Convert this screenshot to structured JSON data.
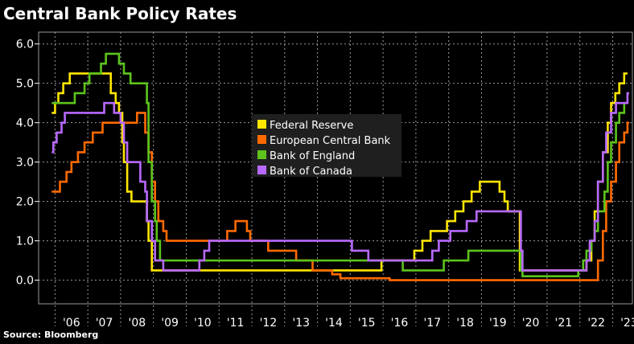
{
  "title": "Central Bank Policy Rates",
  "source": "Source:  Bloomberg",
  "colors": {
    "background": "#000000",
    "grid": "#9a9a9a",
    "axis": "#ffffff"
  },
  "chart_data": {
    "type": "line",
    "title": "Central Bank Policy Rates",
    "xlabel": "",
    "ylabel": "",
    "xlim": [
      2005.5,
      2023.6
    ],
    "ylim": [
      -0.6,
      6.3
    ],
    "yticks": [
      0.0,
      1.0,
      2.0,
      3.0,
      4.0,
      5.0,
      6.0
    ],
    "ytick_labels": [
      "0.0",
      "1.0",
      "2.0",
      "3.0",
      "4.0",
      "5.0",
      "6.0"
    ],
    "xtick_labels": [
      "'06",
      "'07",
      "'08",
      "'09",
      "'10",
      "'11",
      "'12",
      "'13",
      "'14",
      "'15",
      "'16",
      "'17",
      "'18",
      "'19",
      "'20",
      "'21",
      "'22",
      "'23"
    ],
    "xtick_years": [
      2006,
      2007,
      2008,
      2009,
      2010,
      2011,
      2012,
      2013,
      2014,
      2015,
      2016,
      2017,
      2018,
      2019,
      2020,
      2021,
      2022,
      2023
    ],
    "grid": "dashed vertical year dividers, dashed horizontal at each y tick",
    "legend_position": "center",
    "series": [
      {
        "name": "Federal Reserve",
        "color": "#ffe600",
        "points": [
          [
            2005.9,
            4.25
          ],
          [
            2006.0,
            4.5
          ],
          [
            2006.1,
            4.75
          ],
          [
            2006.25,
            5.0
          ],
          [
            2006.45,
            5.25
          ],
          [
            2007.7,
            4.75
          ],
          [
            2007.85,
            4.5
          ],
          [
            2007.95,
            4.25
          ],
          [
            2008.05,
            3.5
          ],
          [
            2008.1,
            3.0
          ],
          [
            2008.2,
            2.25
          ],
          [
            2008.33,
            2.0
          ],
          [
            2008.8,
            1.5
          ],
          [
            2008.85,
            1.0
          ],
          [
            2008.95,
            0.25
          ],
          [
            2015.95,
            0.5
          ],
          [
            2016.95,
            0.75
          ],
          [
            2017.2,
            1.0
          ],
          [
            2017.45,
            1.25
          ],
          [
            2017.95,
            1.5
          ],
          [
            2018.2,
            1.75
          ],
          [
            2018.45,
            2.0
          ],
          [
            2018.7,
            2.25
          ],
          [
            2018.95,
            2.5
          ],
          [
            2019.55,
            2.25
          ],
          [
            2019.7,
            2.0
          ],
          [
            2019.8,
            1.75
          ],
          [
            2020.17,
            0.25
          ],
          [
            2022.2,
            0.5
          ],
          [
            2022.35,
            1.0
          ],
          [
            2022.45,
            1.75
          ],
          [
            2022.55,
            2.5
          ],
          [
            2022.7,
            3.25
          ],
          [
            2022.85,
            4.0
          ],
          [
            2022.95,
            4.5
          ],
          [
            2023.08,
            4.75
          ],
          [
            2023.2,
            5.0
          ],
          [
            2023.35,
            5.25
          ],
          [
            2023.45,
            5.25
          ]
        ]
      },
      {
        "name": "European Central Bank",
        "color": "#ff6a00",
        "points": [
          [
            2005.9,
            2.25
          ],
          [
            2006.15,
            2.5
          ],
          [
            2006.35,
            2.75
          ],
          [
            2006.5,
            3.0
          ],
          [
            2006.7,
            3.25
          ],
          [
            2006.9,
            3.5
          ],
          [
            2007.15,
            3.75
          ],
          [
            2007.45,
            4.0
          ],
          [
            2008.5,
            4.25
          ],
          [
            2008.75,
            3.75
          ],
          [
            2008.85,
            3.25
          ],
          [
            2008.95,
            2.5
          ],
          [
            2009.05,
            2.0
          ],
          [
            2009.15,
            1.5
          ],
          [
            2009.3,
            1.25
          ],
          [
            2009.4,
            1.0
          ],
          [
            2011.25,
            1.25
          ],
          [
            2011.5,
            1.5
          ],
          [
            2011.85,
            1.25
          ],
          [
            2011.95,
            1.0
          ],
          [
            2012.5,
            0.75
          ],
          [
            2013.35,
            0.5
          ],
          [
            2013.85,
            0.25
          ],
          [
            2014.45,
            0.15
          ],
          [
            2014.7,
            0.05
          ],
          [
            2016.2,
            0.0
          ],
          [
            2022.55,
            0.5
          ],
          [
            2022.7,
            1.25
          ],
          [
            2022.8,
            2.0
          ],
          [
            2022.95,
            2.5
          ],
          [
            2023.1,
            3.0
          ],
          [
            2023.2,
            3.5
          ],
          [
            2023.35,
            3.75
          ],
          [
            2023.45,
            4.0
          ],
          [
            2023.5,
            4.0
          ]
        ]
      },
      {
        "name": "Bank of England",
        "color": "#5cc41c",
        "points": [
          [
            2005.9,
            4.5
          ],
          [
            2006.6,
            4.75
          ],
          [
            2006.9,
            5.0
          ],
          [
            2007.05,
            5.25
          ],
          [
            2007.4,
            5.5
          ],
          [
            2007.55,
            5.75
          ],
          [
            2007.95,
            5.5
          ],
          [
            2008.1,
            5.25
          ],
          [
            2008.3,
            5.0
          ],
          [
            2008.8,
            4.5
          ],
          [
            2008.85,
            3.0
          ],
          [
            2008.95,
            2.0
          ],
          [
            2009.05,
            1.5
          ],
          [
            2009.1,
            1.0
          ],
          [
            2009.2,
            0.5
          ],
          [
            2016.6,
            0.25
          ],
          [
            2017.85,
            0.5
          ],
          [
            2018.6,
            0.75
          ],
          [
            2020.2,
            0.25
          ],
          [
            2020.25,
            0.1
          ],
          [
            2021.95,
            0.25
          ],
          [
            2022.1,
            0.5
          ],
          [
            2022.2,
            0.75
          ],
          [
            2022.35,
            1.0
          ],
          [
            2022.45,
            1.25
          ],
          [
            2022.55,
            1.75
          ],
          [
            2022.75,
            2.25
          ],
          [
            2022.85,
            3.0
          ],
          [
            2022.95,
            3.5
          ],
          [
            2023.1,
            4.0
          ],
          [
            2023.2,
            4.25
          ],
          [
            2023.35,
            4.5
          ],
          [
            2023.45,
            4.5
          ]
        ]
      },
      {
        "name": "Bank of Canada",
        "color": "#b869ff",
        "points": [
          [
            2005.9,
            3.25
          ],
          [
            2005.95,
            3.5
          ],
          [
            2006.05,
            3.75
          ],
          [
            2006.2,
            4.0
          ],
          [
            2006.3,
            4.25
          ],
          [
            2007.5,
            4.5
          ],
          [
            2007.8,
            4.25
          ],
          [
            2008.0,
            4.0
          ],
          [
            2008.1,
            3.5
          ],
          [
            2008.2,
            3.0
          ],
          [
            2008.6,
            2.5
          ],
          [
            2008.75,
            2.25
          ],
          [
            2008.8,
            1.5
          ],
          [
            2008.95,
            1.0
          ],
          [
            2009.05,
            0.5
          ],
          [
            2009.3,
            0.25
          ],
          [
            2010.4,
            0.5
          ],
          [
            2010.55,
            0.75
          ],
          [
            2010.7,
            1.0
          ],
          [
            2015.05,
            0.75
          ],
          [
            2015.55,
            0.5
          ],
          [
            2017.5,
            0.75
          ],
          [
            2017.7,
            1.0
          ],
          [
            2018.05,
            1.25
          ],
          [
            2018.55,
            1.5
          ],
          [
            2018.85,
            1.75
          ],
          [
            2020.2,
            0.75
          ],
          [
            2020.25,
            0.25
          ],
          [
            2022.2,
            0.5
          ],
          [
            2022.3,
            1.0
          ],
          [
            2022.45,
            1.5
          ],
          [
            2022.55,
            2.5
          ],
          [
            2022.7,
            3.25
          ],
          [
            2022.8,
            3.75
          ],
          [
            2022.95,
            4.25
          ],
          [
            2023.1,
            4.5
          ],
          [
            2023.45,
            4.75
          ],
          [
            2023.5,
            4.75
          ]
        ]
      }
    ]
  }
}
